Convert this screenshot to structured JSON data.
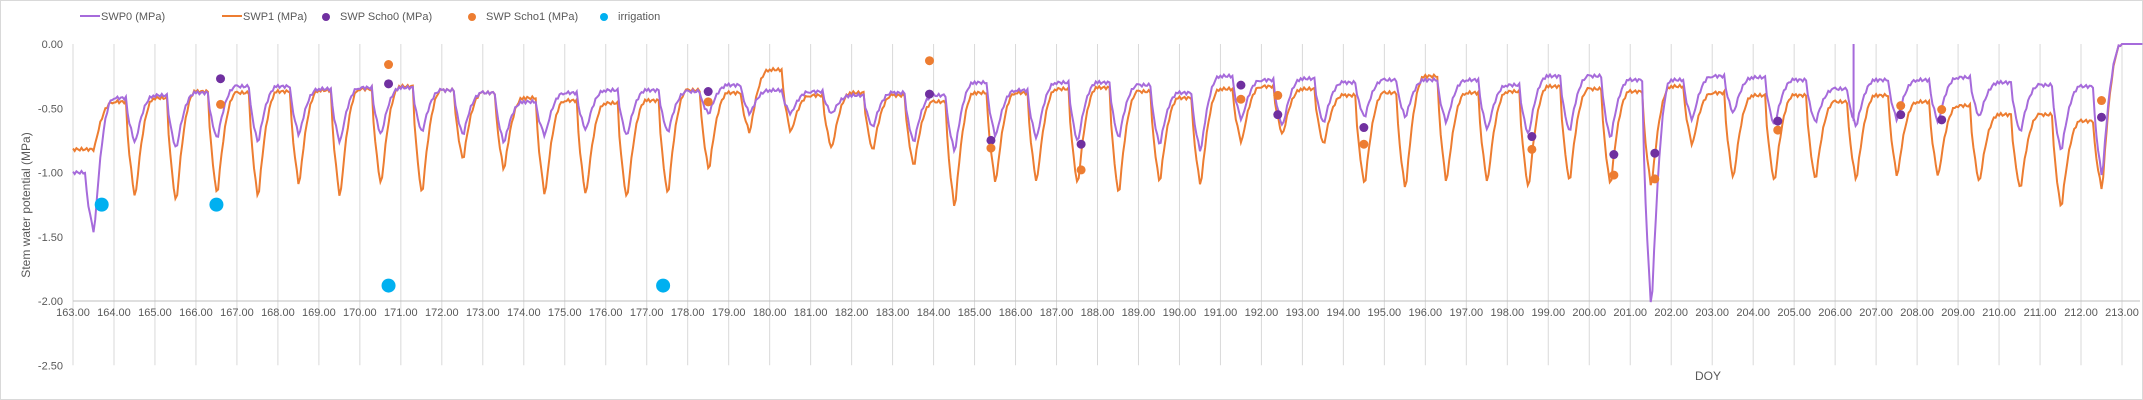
{
  "chart_data": {
    "type": "line",
    "title": "",
    "xlabel": "DOY",
    "ylabel": "Stem water potential (MPa)",
    "xlim": [
      163,
      213
    ],
    "ylim": [
      -2.5,
      0
    ],
    "x_ticks": [
      "163.00",
      "164.00",
      "165.00",
      "166.00",
      "167.00",
      "168.00",
      "169.00",
      "170.00",
      "171.00",
      "172.00",
      "173.00",
      "174.00",
      "175.00",
      "176.00",
      "177.00",
      "178.00",
      "179.00",
      "180.00",
      "181.00",
      "182.00",
      "183.00",
      "184.00",
      "185.00",
      "186.00",
      "187.00",
      "188.00",
      "189.00",
      "190.00",
      "191.00",
      "192.00",
      "193.00",
      "194.00",
      "195.00",
      "196.00",
      "197.00",
      "198.00",
      "199.00",
      "200.00",
      "201.00",
      "202.00",
      "203.00",
      "204.00",
      "205.00",
      "206.00",
      "207.00",
      "208.00",
      "209.00",
      "210.00",
      "211.00",
      "212.00",
      "213.00"
    ],
    "y_ticks": [
      "0.00",
      "-0.50",
      "-1.00",
      "-1.50",
      "-2.00",
      "-2.50"
    ],
    "x_axis_crosses_at": -2.0,
    "grid": {
      "vertical": true,
      "horizontal": false
    },
    "legend_position": "top",
    "legend": [
      {
        "name": "SWP0 (MPa)",
        "type": "line",
        "color": "#a66bdb"
      },
      {
        "name": "SWP1 (MPa)",
        "type": "line",
        "color": "#ed7d31"
      },
      {
        "name": "SWP Scho0 (MPa)",
        "type": "marker",
        "color": "#7030a0"
      },
      {
        "name": "SWP Scho1 (MPa)",
        "type": "marker",
        "color": "#ed7d31"
      },
      {
        "name": "irrigation",
        "type": "marker",
        "color": "#00b0f0"
      }
    ],
    "series": [
      {
        "name": "SWP0 (MPa)",
        "color": "#a66bdb",
        "note": "continuous sensor record, diurnal cycles; per-day [day, predawn max, midday min]",
        "daily": [
          [
            163,
            -1.0,
            -1.48
          ],
          [
            164,
            -0.42,
            -0.78
          ],
          [
            165,
            -0.4,
            -0.83
          ],
          [
            166,
            -0.38,
            -0.75
          ],
          [
            167,
            -0.33,
            -0.78
          ],
          [
            168,
            -0.33,
            -0.72
          ],
          [
            169,
            -0.35,
            -0.78
          ],
          [
            170,
            -0.34,
            -0.72
          ],
          [
            171,
            -0.34,
            -0.7
          ],
          [
            172,
            -0.36,
            -0.72
          ],
          [
            173,
            -0.38,
            -0.78
          ],
          [
            174,
            -0.45,
            -0.72
          ],
          [
            175,
            -0.38,
            -0.68
          ],
          [
            176,
            -0.36,
            -0.73
          ],
          [
            177,
            -0.36,
            -0.7
          ],
          [
            178,
            -0.37,
            -0.55
          ],
          [
            179,
            -0.32,
            -0.55
          ],
          [
            180,
            -0.36,
            -0.55
          ],
          [
            181,
            -0.37,
            -0.55
          ],
          [
            182,
            -0.4,
            -0.66
          ],
          [
            183,
            -0.38,
            -0.78
          ],
          [
            184,
            -0.4,
            -0.85
          ],
          [
            185,
            -0.3,
            -0.73
          ],
          [
            186,
            -0.36,
            -0.75
          ],
          [
            187,
            -0.3,
            -0.78
          ],
          [
            188,
            -0.3,
            -0.75
          ],
          [
            189,
            -0.32,
            -0.8
          ],
          [
            190,
            -0.38,
            -0.85
          ],
          [
            191,
            -0.25,
            -0.6
          ],
          [
            192,
            -0.28,
            -0.65
          ],
          [
            193,
            -0.27,
            -0.63
          ],
          [
            194,
            -0.3,
            -0.58
          ],
          [
            195,
            -0.28,
            -0.58
          ],
          [
            196,
            -0.28,
            -0.62
          ],
          [
            197,
            -0.28,
            -0.68
          ],
          [
            198,
            -0.32,
            -0.72
          ],
          [
            199,
            -0.25,
            -0.7
          ],
          [
            200,
            -0.25,
            -0.75
          ],
          [
            201,
            -0.28,
            -2.1
          ],
          [
            202,
            -0.28,
            -0.6
          ],
          [
            203,
            -0.25,
            -0.55
          ],
          [
            204,
            -0.26,
            -0.65
          ],
          [
            205,
            -0.28,
            -0.62
          ],
          [
            206,
            -0.35,
            -0.65
          ],
          [
            207,
            -0.28,
            -0.6
          ],
          [
            208,
            -0.28,
            -0.62
          ],
          [
            209,
            -0.26,
            -0.58
          ],
          [
            210,
            -0.3,
            -0.7
          ],
          [
            211,
            -0.32,
            -0.85
          ],
          [
            212,
            -0.33,
            -1.05
          ],
          [
            213,
            0.0,
            0.0
          ]
        ],
        "spikes": [
          [
            206.45,
            0.0
          ]
        ]
      },
      {
        "name": "SWP1 (MPa)",
        "color": "#ed7d31",
        "note": "continuous sensor record, diurnal cycles; per-day [day, predawn max, midday min]",
        "daily": [
          [
            163,
            -0.82,
            -0.82
          ],
          [
            164,
            -0.45,
            -1.22
          ],
          [
            165,
            -0.42,
            -1.26
          ],
          [
            166,
            -0.37,
            -1.2
          ],
          [
            167,
            -0.38,
            -1.22
          ],
          [
            168,
            -0.37,
            -1.12
          ],
          [
            169,
            -0.36,
            -1.22
          ],
          [
            170,
            -0.35,
            -1.12
          ],
          [
            171,
            -0.33,
            -1.2
          ],
          [
            172,
            -0.36,
            -0.92
          ],
          [
            173,
            -0.38,
            -1.0
          ],
          [
            174,
            -0.42,
            -1.2
          ],
          [
            175,
            -0.44,
            -1.2
          ],
          [
            176,
            -0.46,
            -1.23
          ],
          [
            177,
            -0.44,
            -1.2
          ],
          [
            178,
            -0.36,
            -1.0
          ],
          [
            179,
            -0.38,
            -0.7
          ],
          [
            180,
            -0.2,
            -0.7
          ],
          [
            181,
            -0.4,
            -0.83
          ],
          [
            182,
            -0.38,
            -0.85
          ],
          [
            183,
            -0.4,
            -0.97
          ],
          [
            184,
            -0.45,
            -1.3
          ],
          [
            185,
            -0.38,
            -1.1
          ],
          [
            186,
            -0.38,
            -1.1
          ],
          [
            187,
            -0.35,
            -1.12
          ],
          [
            188,
            -0.34,
            -1.2
          ],
          [
            189,
            -0.37,
            -1.1
          ],
          [
            190,
            -0.42,
            -1.12
          ],
          [
            191,
            -0.35,
            -0.78
          ],
          [
            192,
            -0.33,
            -0.72
          ],
          [
            193,
            -0.35,
            -0.8
          ],
          [
            194,
            -0.4,
            -1.12
          ],
          [
            195,
            -0.38,
            -1.15
          ],
          [
            196,
            -0.25,
            -1.1
          ],
          [
            197,
            -0.38,
            -1.1
          ],
          [
            198,
            -0.37,
            -1.15
          ],
          [
            199,
            -0.33,
            -1.1
          ],
          [
            200,
            -0.35,
            -1.12
          ],
          [
            201,
            -0.37,
            -1.13
          ],
          [
            202,
            -0.33,
            -0.8
          ],
          [
            203,
            -0.38,
            -1.07
          ],
          [
            204,
            -0.4,
            -1.1
          ],
          [
            205,
            -0.4,
            -1.08
          ],
          [
            206,
            -0.45,
            -1.08
          ],
          [
            207,
            -0.4,
            -1.05
          ],
          [
            208,
            -0.45,
            -1.05
          ],
          [
            209,
            -0.48,
            -1.1
          ],
          [
            210,
            -0.55,
            -1.15
          ],
          [
            211,
            -0.55,
            -1.3
          ],
          [
            212,
            -0.6,
            -1.15
          ],
          [
            213,
            0.0,
            0.0
          ]
        ]
      },
      {
        "name": "SWP Scho0 (MPa)",
        "color": "#7030a0",
        "points": [
          [
            166.6,
            -0.27
          ],
          [
            170.7,
            -0.31
          ],
          [
            178.5,
            -0.37
          ],
          [
            183.9,
            -0.39
          ],
          [
            185.4,
            -0.75
          ],
          [
            187.6,
            -0.78
          ],
          [
            191.5,
            -0.32
          ],
          [
            192.4,
            -0.55
          ],
          [
            194.5,
            -0.65
          ],
          [
            198.6,
            -0.72
          ],
          [
            200.6,
            -0.86
          ],
          [
            201.6,
            -0.85
          ],
          [
            204.6,
            -0.6
          ],
          [
            207.6,
            -0.55
          ],
          [
            208.6,
            -0.59
          ],
          [
            212.5,
            -0.57
          ]
        ]
      },
      {
        "name": "SWP Scho1 (MPa)",
        "color": "#ed7d31",
        "points": [
          [
            166.6,
            -0.47
          ],
          [
            170.7,
            -0.16
          ],
          [
            178.5,
            -0.45
          ],
          [
            183.9,
            -0.13
          ],
          [
            185.4,
            -0.81
          ],
          [
            187.6,
            -0.98
          ],
          [
            191.5,
            -0.43
          ],
          [
            192.4,
            -0.4
          ],
          [
            194.5,
            -0.78
          ],
          [
            198.6,
            -0.82
          ],
          [
            200.6,
            -1.02
          ],
          [
            201.6,
            -1.05
          ],
          [
            204.6,
            -0.67
          ],
          [
            207.6,
            -0.48
          ],
          [
            208.6,
            -0.51
          ],
          [
            212.5,
            -0.44
          ]
        ]
      },
      {
        "name": "irrigation",
        "color": "#00b0f0",
        "points": [
          [
            163.7,
            -1.25
          ],
          [
            166.5,
            -1.25
          ],
          [
            170.7,
            -1.88
          ],
          [
            177.4,
            -1.88
          ]
        ]
      }
    ]
  }
}
